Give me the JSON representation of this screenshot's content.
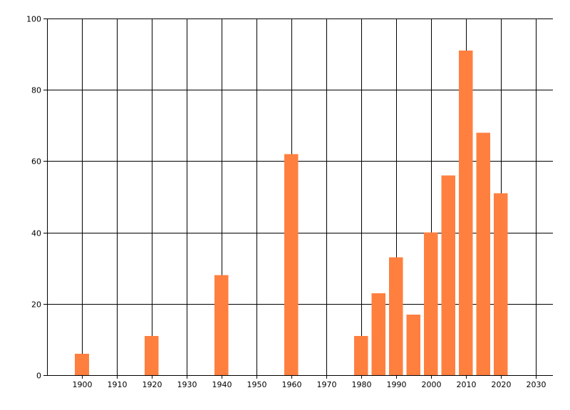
{
  "chart_data": {
    "type": "bar",
    "x": [
      1900,
      1920,
      1940,
      1960,
      1980,
      1985,
      1990,
      1995,
      2000,
      2005,
      2010,
      2015,
      2020
    ],
    "values": [
      6,
      11,
      28,
      62,
      11,
      23,
      33,
      17,
      40,
      56,
      91,
      68,
      51
    ],
    "xlim": [
      1890,
      2035
    ],
    "ylim": [
      0,
      100
    ],
    "x_ticks": [
      1900,
      1910,
      1920,
      1930,
      1940,
      1950,
      1960,
      1970,
      1980,
      1990,
      2000,
      2010,
      2020,
      2030
    ],
    "y_ticks": [
      0,
      20,
      40,
      60,
      80,
      100
    ],
    "bar_width_years": 4,
    "grid": true,
    "bar_color": "#ff7f3f",
    "title": "",
    "xlabel": "",
    "ylabel": ""
  }
}
